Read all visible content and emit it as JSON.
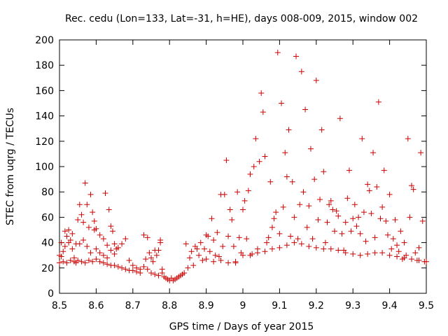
{
  "chart_data": {
    "type": "scatter",
    "title": "Rec. cedu (Lon=133, Lat=-31, h=HE), days 008-009, 2015, window 002",
    "xlabel": "GPS time / Days of year 2015",
    "ylabel": "STEC from uqrg / TECUs",
    "xlim": [
      8.5,
      9.5
    ],
    "ylim": [
      0,
      200
    ],
    "xticks": [
      8.5,
      8.6,
      8.7,
      8.8,
      8.9,
      9.0,
      9.1,
      9.2,
      9.3,
      9.4,
      9.5
    ],
    "xtick_labels": [
      "8.5",
      "8.6",
      "8.7",
      "8.8",
      "8.9",
      "9",
      "9.1",
      "9.2",
      "9.3",
      "9.4",
      "9.5"
    ],
    "yticks": [
      0,
      20,
      40,
      60,
      80,
      100,
      120,
      140,
      160,
      180,
      200
    ],
    "ytick_labels": [
      "0",
      "20",
      "40",
      "60",
      "80",
      "100",
      "120",
      "140",
      "160",
      "180",
      "200"
    ],
    "grid": false,
    "legend": "none",
    "marker": "+",
    "color": "#cc0000",
    "series": [
      {
        "name": "STEC",
        "points": [
          [
            8.5,
            24
          ],
          [
            8.505,
            29
          ],
          [
            8.51,
            33
          ],
          [
            8.515,
            37
          ],
          [
            8.52,
            45
          ],
          [
            8.525,
            50
          ],
          [
            8.53,
            42
          ],
          [
            8.535,
            35
          ],
          [
            8.54,
            28
          ],
          [
            8.545,
            24
          ],
          [
            8.55,
            58
          ],
          [
            8.555,
            70
          ],
          [
            8.56,
            62
          ],
          [
            8.565,
            56
          ],
          [
            8.57,
            87
          ],
          [
            8.575,
            70
          ],
          [
            8.58,
            52
          ],
          [
            8.585,
            78
          ],
          [
            8.59,
            64
          ],
          [
            8.595,
            57
          ],
          [
            8.505,
            40
          ],
          [
            8.515,
            49
          ],
          [
            8.525,
            40
          ],
          [
            8.535,
            47
          ],
          [
            8.545,
            39
          ],
          [
            8.555,
            39
          ],
          [
            8.565,
            42
          ],
          [
            8.575,
            37
          ],
          [
            8.585,
            32
          ],
          [
            8.595,
            50
          ],
          [
            8.5,
            30
          ],
          [
            8.51,
            25
          ],
          [
            8.52,
            24
          ],
          [
            8.53,
            26
          ],
          [
            8.54,
            25
          ],
          [
            8.55,
            26
          ],
          [
            8.56,
            25
          ],
          [
            8.57,
            24
          ],
          [
            8.58,
            26
          ],
          [
            8.59,
            25
          ],
          [
            8.6,
            51
          ],
          [
            8.61,
            46
          ],
          [
            8.62,
            43
          ],
          [
            8.625,
            79
          ],
          [
            8.63,
            38
          ],
          [
            8.635,
            66
          ],
          [
            8.64,
            53
          ],
          [
            8.645,
            49
          ],
          [
            8.65,
            39
          ],
          [
            8.655,
            35
          ],
          [
            8.6,
            27
          ],
          [
            8.61,
            25
          ],
          [
            8.62,
            24
          ],
          [
            8.63,
            23
          ],
          [
            8.64,
            22
          ],
          [
            8.65,
            22
          ],
          [
            8.66,
            21
          ],
          [
            8.67,
            20
          ],
          [
            8.68,
            19
          ],
          [
            8.69,
            18
          ],
          [
            8.6,
            35
          ],
          [
            8.61,
            32
          ],
          [
            8.62,
            30
          ],
          [
            8.63,
            28
          ],
          [
            8.64,
            34
          ],
          [
            8.65,
            31
          ],
          [
            8.66,
            36
          ],
          [
            8.67,
            39
          ],
          [
            8.68,
            43
          ],
          [
            8.69,
            26
          ],
          [
            8.7,
            18
          ],
          [
            8.71,
            17
          ],
          [
            8.72,
            16
          ],
          [
            8.73,
            46
          ],
          [
            8.735,
            27
          ],
          [
            8.74,
            44
          ],
          [
            8.745,
            32
          ],
          [
            8.75,
            28
          ],
          [
            8.755,
            25
          ],
          [
            8.76,
            34
          ],
          [
            8.7,
            22
          ],
          [
            8.71,
            20
          ],
          [
            8.72,
            19
          ],
          [
            8.73,
            21
          ],
          [
            8.74,
            19
          ],
          [
            8.75,
            16
          ],
          [
            8.76,
            15
          ],
          [
            8.77,
            14
          ],
          [
            8.775,
            42
          ],
          [
            8.78,
            19
          ],
          [
            8.765,
            30
          ],
          [
            8.77,
            34
          ],
          [
            8.775,
            40
          ],
          [
            8.78,
            16
          ],
          [
            8.785,
            13
          ],
          [
            8.79,
            12
          ],
          [
            8.795,
            11
          ],
          [
            8.8,
            10
          ],
          [
            8.805,
            12
          ],
          [
            8.81,
            10
          ],
          [
            8.815,
            11
          ],
          [
            8.82,
            12
          ],
          [
            8.825,
            13
          ],
          [
            8.83,
            14
          ],
          [
            8.835,
            15
          ],
          [
            8.84,
            16
          ],
          [
            8.845,
            39
          ],
          [
            8.85,
            20
          ],
          [
            8.855,
            28
          ],
          [
            8.86,
            33
          ],
          [
            8.865,
            22
          ],
          [
            8.87,
            37
          ],
          [
            8.875,
            35
          ],
          [
            8.88,
            30
          ],
          [
            8.885,
            40
          ],
          [
            8.89,
            26
          ],
          [
            8.895,
            35
          ],
          [
            8.9,
            46
          ],
          [
            8.905,
            45
          ],
          [
            8.91,
            33
          ],
          [
            8.915,
            59
          ],
          [
            8.92,
            42
          ],
          [
            8.925,
            30
          ],
          [
            8.93,
            48
          ],
          [
            8.935,
            29
          ],
          [
            8.94,
            78
          ],
          [
            8.945,
            37
          ],
          [
            8.95,
            78
          ],
          [
            8.955,
            105
          ],
          [
            8.96,
            45
          ],
          [
            8.965,
            66
          ],
          [
            8.97,
            58
          ],
          [
            8.975,
            37
          ],
          [
            8.98,
            25
          ],
          [
            8.985,
            80
          ],
          [
            8.99,
            44
          ],
          [
            8.995,
            32
          ],
          [
            8.9,
            27
          ],
          [
            8.92,
            25
          ],
          [
            8.94,
            26
          ],
          [
            8.96,
            24
          ],
          [
            8.98,
            24
          ],
          [
            9.0,
            66
          ],
          [
            9.005,
            73
          ],
          [
            9.01,
            43
          ],
          [
            9.015,
            81
          ],
          [
            9.02,
            94
          ],
          [
            9.025,
            31
          ],
          [
            9.03,
            100
          ],
          [
            9.035,
            122
          ],
          [
            9.04,
            35
          ],
          [
            9.045,
            104
          ],
          [
            9.05,
            158
          ],
          [
            9.055,
            143
          ],
          [
            9.06,
            108
          ],
          [
            9.065,
            40
          ],
          [
            9.07,
            44
          ],
          [
            9.075,
            88
          ],
          [
            9.08,
            52
          ],
          [
            9.085,
            59
          ],
          [
            9.09,
            64
          ],
          [
            9.095,
            190
          ],
          [
            9.1,
            47
          ],
          [
            9.105,
            150
          ],
          [
            9.11,
            68
          ],
          [
            9.115,
            111
          ],
          [
            9.12,
            92
          ],
          [
            9.125,
            129
          ],
          [
            9.13,
            45
          ],
          [
            9.135,
            88
          ],
          [
            9.14,
            60
          ],
          [
            9.145,
            187
          ],
          [
            9.15,
            43
          ],
          [
            9.155,
            70
          ],
          [
            9.16,
            175
          ],
          [
            9.165,
            80
          ],
          [
            9.17,
            145
          ],
          [
            9.175,
            52
          ],
          [
            9.18,
            69
          ],
          [
            9.185,
            114
          ],
          [
            9.19,
            43
          ],
          [
            9.195,
            90
          ],
          [
            9.2,
            168
          ],
          [
            9.205,
            58
          ],
          [
            9.21,
            74
          ],
          [
            9.215,
            129
          ],
          [
            9.22,
            96
          ],
          [
            9.225,
            40
          ],
          [
            9.23,
            56
          ],
          [
            9.235,
            70
          ],
          [
            9.24,
            73
          ],
          [
            9.245,
            66
          ],
          [
            9.25,
            49
          ],
          [
            9.255,
            65
          ],
          [
            9.26,
            61
          ],
          [
            9.265,
            138
          ],
          [
            9.27,
            47
          ],
          [
            9.275,
            34
          ],
          [
            9.28,
            56
          ],
          [
            9.285,
            75
          ],
          [
            9.29,
            97
          ],
          [
            9.295,
            49
          ],
          [
            9.3,
            59
          ],
          [
            9.305,
            70
          ],
          [
            9.31,
            53
          ],
          [
            9.315,
            60
          ],
          [
            9.32,
            47
          ],
          [
            9.325,
            122
          ],
          [
            9.33,
            64
          ],
          [
            9.335,
            41
          ],
          [
            9.34,
            86
          ],
          [
            9.345,
            81
          ],
          [
            9.35,
            63
          ],
          [
            9.355,
            111
          ],
          [
            9.36,
            44
          ],
          [
            9.365,
            84
          ],
          [
            9.37,
            151
          ],
          [
            9.375,
            59
          ],
          [
            9.38,
            68
          ],
          [
            9.385,
            97
          ],
          [
            9.39,
            57
          ],
          [
            9.395,
            46
          ],
          [
            9.4,
            78
          ],
          [
            9.405,
            35
          ],
          [
            9.41,
            43
          ],
          [
            9.415,
            58
          ],
          [
            9.42,
            38
          ],
          [
            9.425,
            33
          ],
          [
            9.43,
            49
          ],
          [
            9.435,
            27
          ],
          [
            9.44,
            40
          ],
          [
            9.445,
            30
          ],
          [
            9.45,
            122
          ],
          [
            9.455,
            60
          ],
          [
            9.46,
            85
          ],
          [
            9.465,
            82
          ],
          [
            9.47,
            32
          ],
          [
            9.475,
            26
          ],
          [
            9.48,
            36
          ],
          [
            9.485,
            111
          ],
          [
            9.49,
            57
          ],
          [
            9.495,
            25
          ],
          [
            9.0,
            30
          ],
          [
            9.02,
            30
          ],
          [
            9.04,
            32
          ],
          [
            9.06,
            33
          ],
          [
            9.08,
            35
          ],
          [
            9.1,
            36
          ],
          [
            9.12,
            38
          ],
          [
            9.14,
            40
          ],
          [
            9.16,
            39
          ],
          [
            9.18,
            37
          ],
          [
            9.2,
            36
          ],
          [
            9.22,
            35
          ],
          [
            9.24,
            35
          ],
          [
            9.26,
            34
          ],
          [
            9.28,
            32
          ],
          [
            9.3,
            31
          ],
          [
            9.32,
            30
          ],
          [
            9.34,
            31
          ],
          [
            9.36,
            32
          ],
          [
            9.38,
            32
          ],
          [
            9.4,
            30
          ],
          [
            9.42,
            29
          ],
          [
            9.44,
            28
          ],
          [
            9.46,
            27
          ],
          [
            9.48,
            26
          ],
          [
            9.5,
            25
          ]
        ]
      }
    ]
  }
}
